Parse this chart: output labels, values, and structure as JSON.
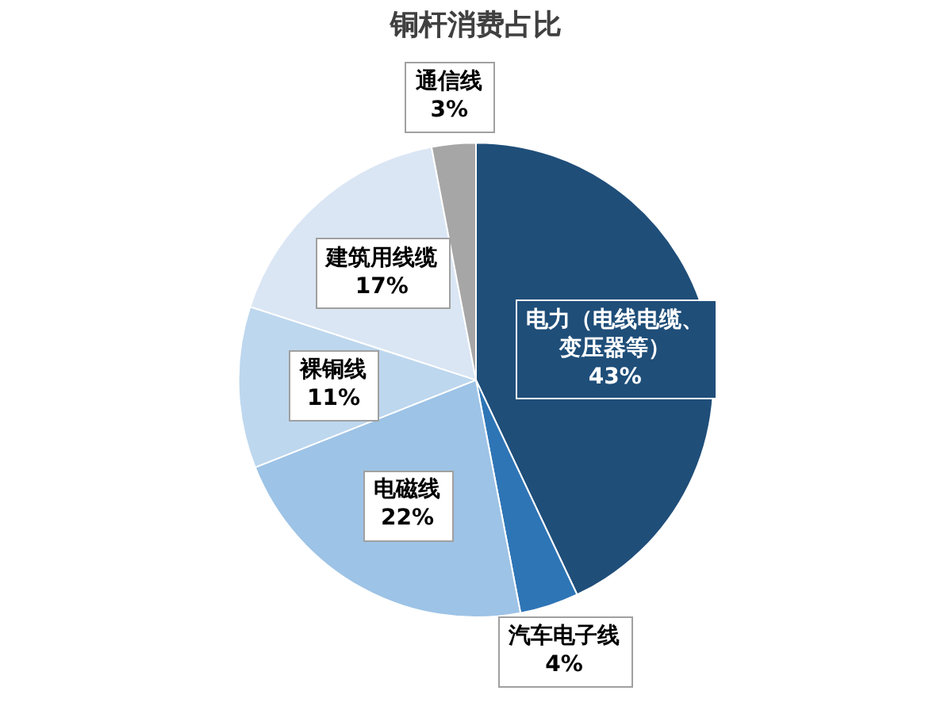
{
  "chart_data": {
    "type": "pie",
    "title": "铜杆消费占比",
    "categories": [
      "电力（电线电缆、变压器等）",
      "汽车电子线",
      "电磁线",
      "裸铜线",
      "建筑用线缆",
      "通信线"
    ],
    "values": [
      43,
      4,
      22,
      11,
      17,
      3
    ],
    "colors": [
      "#1f4e79",
      "#2e75b6",
      "#9dc3e6",
      "#bdd7ee",
      "#dae6f4",
      "#a6a6a6"
    ],
    "value_labels": [
      "43%",
      "4%",
      "22%",
      "11%",
      "17%",
      "3%"
    ]
  }
}
